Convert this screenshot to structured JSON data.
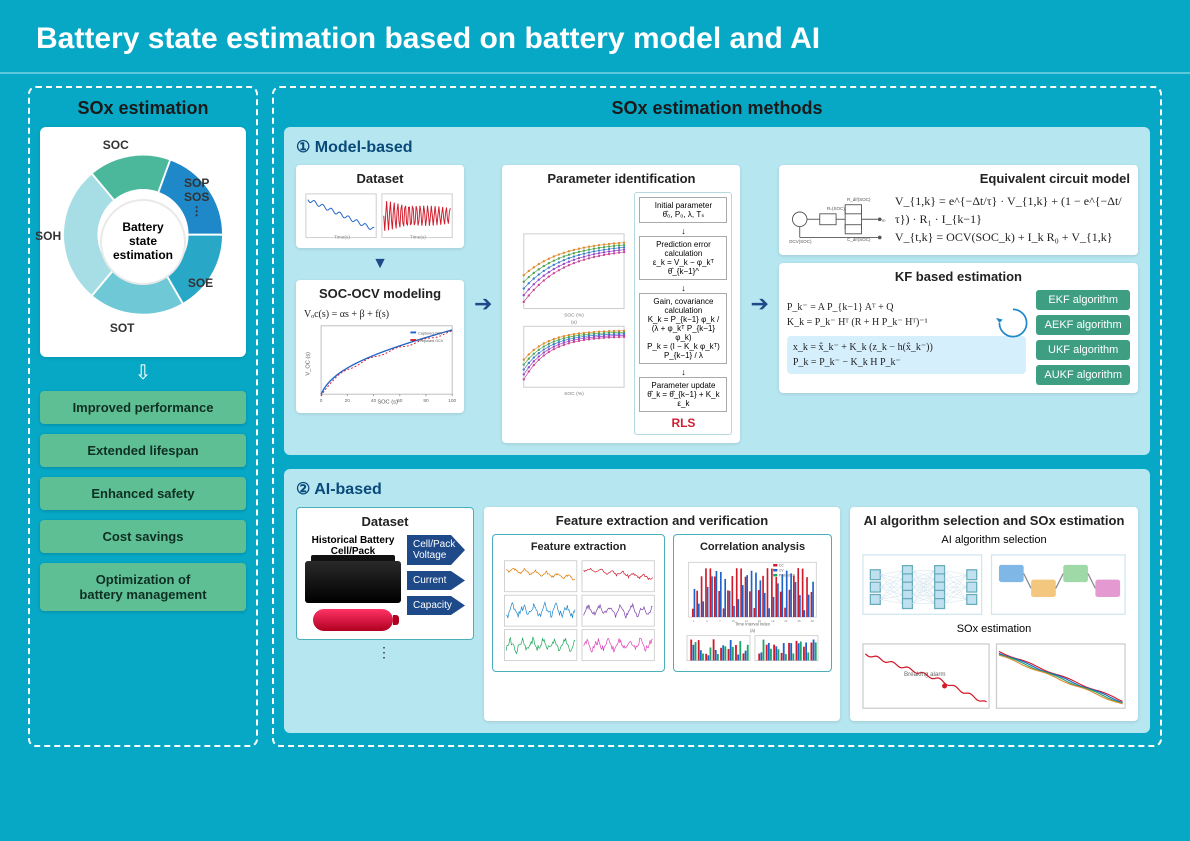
{
  "title": "Battery state estimation based on battery model and AI",
  "left_panel": {
    "title": "SOx estimation",
    "donut": {
      "center_label": "Battery\nstate\nestimation",
      "slices": [
        {
          "label": "SOC",
          "color": "#4bb79b",
          "start": -40,
          "sweep": 60
        },
        {
          "label": "SOP\nSOS\n⋮",
          "color": "#1e88c9",
          "start": 20,
          "sweep": 70
        },
        {
          "label": "SOE",
          "color": "#28a7c6",
          "start": 90,
          "sweep": 60
        },
        {
          "label": "SOT",
          "color": "#6fc8d6",
          "start": 150,
          "sweep": 70
        },
        {
          "label": "SOH",
          "color": "#a7dee6",
          "start": 220,
          "sweep": 100
        }
      ]
    },
    "benefits": [
      "Improved performance",
      "Extended lifespan",
      "Enhanced safety",
      "Cost savings",
      "Optimization of\nbattery management"
    ]
  },
  "methods_title": "SOx estimation methods",
  "model_based": {
    "title": "① Model-based",
    "dataset": {
      "title": "Dataset",
      "series_a_color": "#1e63c9",
      "series_b_color": "#d11a2a",
      "x_label": "Time(s)"
    },
    "soc_ocv": {
      "title": "SOC-OCV modeling",
      "eq": "Vₒc(s) = αs + β + f(s)",
      "legend": [
        "Captured OCV",
        "Proposed OCV"
      ],
      "x_label": "SOC (s)",
      "curve_color_main": "#1e63c9",
      "curve_color_alt": "#d11a2a",
      "x_ticks": [
        0,
        20,
        40,
        60,
        80,
        100
      ],
      "y_ticks": [
        3.2,
        3.6,
        4.0,
        4.2
      ]
    },
    "param_id": {
      "title": "Parameter identification",
      "rls_steps": [
        "Initial parameter\nθ̂₀, P₀, λ, Tₛ",
        "Prediction error calculation\nε_k = V_k − φ_kᵀ θ̂_{k−1}^",
        "Gain, covariance calculation\nK_k = P_{k−1} φ_k / (λ + φ_kᵀ P_{k−1} φ_k)\nP_k = (I − K_k φ_kᵀ) P_{k−1} / λ",
        "Parameter update\nθ̂_k = θ̂_{k−1} + K_k ε_k"
      ],
      "rls_label": "RLS",
      "series_colors": [
        "#e08a2c",
        "#4ea54e",
        "#3b7fc4",
        "#9a46c9",
        "#c94694"
      ],
      "x_label": "SOC (%)",
      "x_ticks": [
        0,
        10,
        20,
        30,
        40,
        50,
        60,
        70,
        80,
        90,
        100
      ],
      "y_ticks_top": [
        0.04,
        0.035,
        0.03,
        0.025,
        0.02,
        0.015,
        0.01
      ],
      "y_ticks_bot": [
        0.04,
        0.035,
        0.03,
        0.025,
        0.02,
        0.015,
        0.01,
        0.005
      ]
    },
    "ecm": {
      "title": "Equivalent circuit model",
      "parts": [
        "Rₛ(SOC)",
        "R_dif(SOC)",
        "C_dif(SOC)",
        "OCV(SOC)",
        "V_t",
        "V_I"
      ],
      "eq1": "V_{1,k} = e^{−Δt/τ} · V_{1,k} + (1 − e^{−Δt/τ}) · R₁ · I_{k−1}",
      "eq2": "V_{t,k} = OCV(SOC_k) + I_k R₀ + V_{1,k}"
    },
    "kf": {
      "title": "KF based estimation",
      "eq_pred": "P_k⁻ = A P_{k−1} Aᵀ + Q\nK_k = P_k⁻ Hᵀ (R + H P_k⁻ Hᵀ)⁻¹",
      "eq_upd": "x_k = x̂_k⁻ + K_k (z_k − h(x̂_k⁻))\nP_k = P_k⁻ − K_k H P_k⁻",
      "algs": [
        "EKF algorithm",
        "AEKF algorithm",
        "UKF algorithm",
        "AUKF algorithm"
      ]
    }
  },
  "ai_based": {
    "title": "② AI-based",
    "dataset": {
      "title": "Dataset",
      "sub": "Historical Battery\nCell/Pack",
      "feeds": [
        "Cell/Pack Voltage",
        "Current",
        "Capacity"
      ]
    },
    "feat_panel": {
      "title": "Feature extraction and verification",
      "fe_title": "Feature extraction",
      "corr_title": "Correlation analysis",
      "x_label": "Time Interval Index",
      "legend": [
        "CC",
        "CV",
        "Probed CV"
      ],
      "bar_colors": [
        "#d11a2a",
        "#1e63c9",
        "#1ea56b"
      ]
    },
    "ai_panel": {
      "title": "AI algorithm selection and SOx estimation",
      "sel_title": "AI algorithm selection",
      "est_title": "SOx estimation",
      "est_curve_colors": [
        "#d11a2a",
        "#1e63c9"
      ]
    }
  },
  "colors": {
    "bg": "#06a8c6",
    "panel_bg": "#b6e6ef",
    "benefit_bg": "#5fbf94",
    "kf_alg_bg": "#3e9e81",
    "dark_arrow": "#1e4a8a"
  }
}
